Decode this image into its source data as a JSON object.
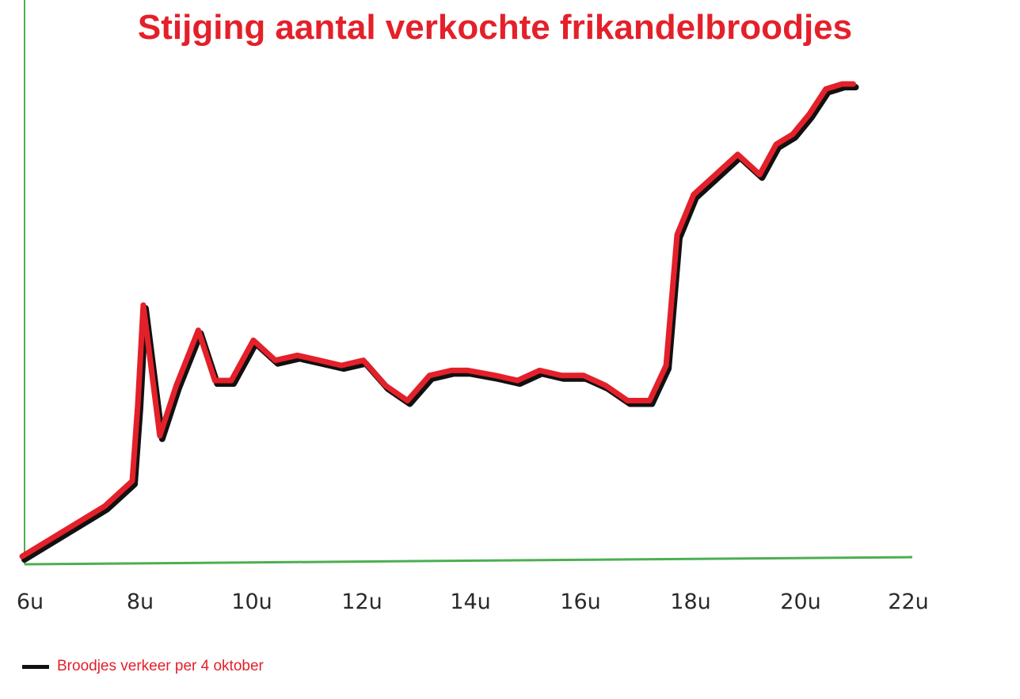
{
  "chart_data": {
    "type": "line",
    "title": "Stijging aantal verkochte frikandelbroodjes",
    "xlabel": "",
    "ylabel": "",
    "x_ticks": [
      "6u",
      "8u",
      "10u",
      "12u",
      "14u",
      "16u",
      "18u",
      "20u",
      "22u"
    ],
    "xlim": [
      6,
      22
    ],
    "ylim": [
      0,
      100
    ],
    "grid": false,
    "legend_placement": "bottom-left",
    "colors": {
      "title": "#e4202a",
      "line": "#e4202a",
      "line_shadow": "#111111",
      "axis": "#4caf50",
      "legend_text": "#e4202a"
    },
    "series": [
      {
        "name": "Broodjes verkeer per 4 oktober",
        "x": [
          6.0,
          6.9,
          7.5,
          8.0,
          8.1,
          8.2,
          8.5,
          8.8,
          9.2,
          9.5,
          9.8,
          10.2,
          10.6,
          11.0,
          11.4,
          11.8,
          12.2,
          12.6,
          13.0,
          13.4,
          13.8,
          14.1,
          14.6,
          15.0,
          15.4,
          15.8,
          16.2,
          16.6,
          17.0,
          17.4,
          17.7,
          17.9,
          18.2,
          18.6,
          19.0,
          19.4,
          19.7,
          20.0,
          20.3,
          20.6,
          20.9,
          21.1
        ],
        "y": [
          0,
          6,
          10,
          15,
          30,
          50,
          24,
          34,
          45,
          35,
          35,
          43,
          39,
          40,
          39,
          38,
          39,
          34,
          31,
          36,
          37,
          37,
          36,
          35,
          37,
          36,
          36,
          34,
          31,
          31,
          38,
          64,
          72,
          76,
          80,
          76,
          82,
          84,
          88,
          93,
          94,
          94
        ]
      }
    ]
  }
}
